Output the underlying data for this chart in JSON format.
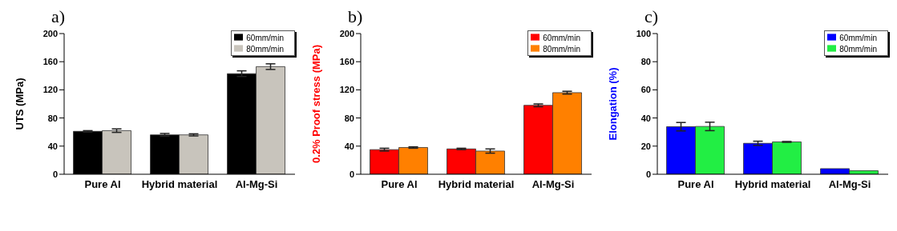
{
  "chart_data": [
    {
      "type": "bar",
      "title": "a)",
      "ylabel": "UTS (MPa)",
      "categories": [
        "Pure Al",
        "Hybrid material",
        "Al-Mg-Si"
      ],
      "ylim": [
        0,
        200
      ],
      "yticks": [
        0,
        40,
        80,
        120,
        160,
        200
      ],
      "legend": "top right",
      "series": [
        {
          "name": "60mm/min",
          "color": "#000000",
          "values": [
            61,
            56,
            143
          ],
          "errors": [
            1,
            2,
            4
          ]
        },
        {
          "name": "80mm/min",
          "color": "#c8c4bc",
          "values": [
            62,
            56,
            153
          ],
          "errors": [
            2.5,
            1.5,
            4
          ]
        }
      ]
    },
    {
      "type": "bar",
      "title": "b)",
      "ylabel": "0.2% Proof stress (MPa)",
      "categories": [
        "Pure Al",
        "Hybrid material",
        "Al-Mg-Si"
      ],
      "ylim": [
        0,
        200
      ],
      "yticks": [
        0,
        40,
        80,
        120,
        160,
        200
      ],
      "legend": "top right",
      "series": [
        {
          "name": "60mm/min",
          "color": "#ff0000",
          "values": [
            35,
            36,
            98
          ],
          "errors": [
            2,
            1,
            2
          ]
        },
        {
          "name": "80mm/min",
          "color": "#ff8000",
          "values": [
            38,
            33,
            116
          ],
          "errors": [
            1,
            3,
            2
          ]
        }
      ]
    },
    {
      "type": "bar",
      "title": "c)",
      "ylabel": "Elongation (%)",
      "categories": [
        "Pure Al",
        "Hybrid material",
        "Al-Mg-Si"
      ],
      "ylim": [
        0,
        100
      ],
      "yticks": [
        0,
        20,
        40,
        60,
        80,
        100
      ],
      "legend": "top right",
      "series": [
        {
          "name": "60mm/min",
          "color": "#0000ff",
          "values": [
            33.8,
            22,
            4
          ],
          "errors": [
            3,
            1.5,
            null
          ]
        },
        {
          "name": "80mm/min",
          "color": "#22ee44",
          "values": [
            34,
            23,
            2.5
          ],
          "errors": [
            3,
            0.3,
            null
          ]
        }
      ]
    }
  ]
}
